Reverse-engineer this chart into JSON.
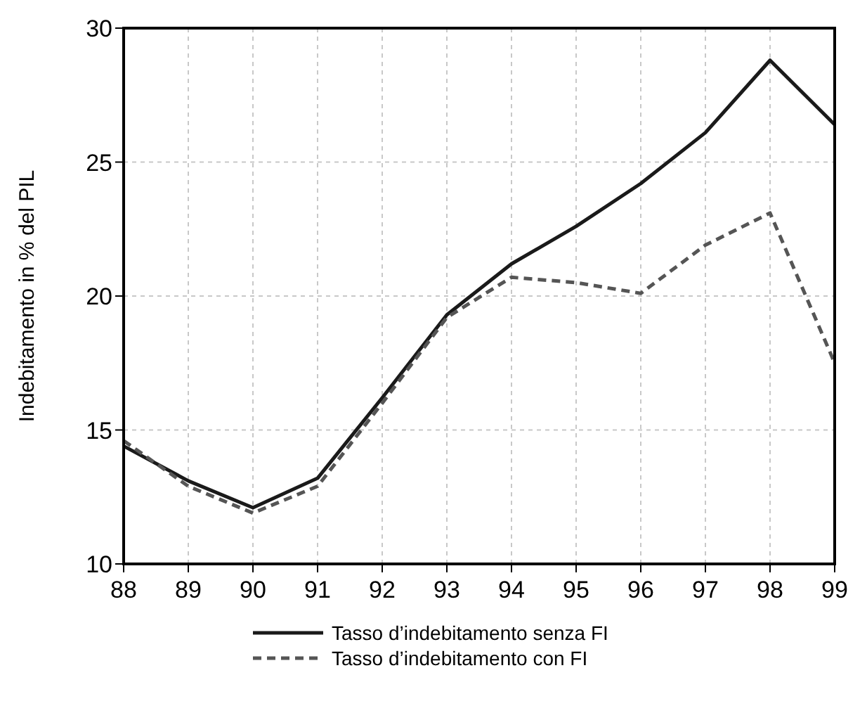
{
  "chart_data": {
    "type": "line",
    "ylabel": "Indebitamento in % del PIL",
    "x": [
      88,
      89,
      90,
      91,
      92,
      93,
      94,
      95,
      96,
      97,
      98,
      99
    ],
    "xlim": [
      88,
      99
    ],
    "xticks": [
      88,
      89,
      90,
      91,
      92,
      93,
      94,
      95,
      96,
      97,
      98,
      99
    ],
    "ylim": [
      10,
      30
    ],
    "yticks": [
      10,
      15,
      20,
      25,
      30
    ],
    "grid": true,
    "legend": "bottom",
    "series": [
      {
        "name": "Tasso d’indebitamento senza FI",
        "color": "#1a1a1a",
        "line_style": "solid",
        "values": [
          14.4,
          13.1,
          12.1,
          13.2,
          16.2,
          19.3,
          21.2,
          22.6,
          24.2,
          26.1,
          28.8,
          26.4
        ]
      },
      {
        "name": "Tasso d’indebitamento con FI",
        "color": "#555555",
        "line_style": "dashed",
        "values": [
          14.6,
          12.9,
          11.9,
          12.9,
          16.0,
          19.2,
          20.7,
          20.5,
          20.1,
          21.9,
          23.1,
          17.5
        ]
      }
    ]
  }
}
